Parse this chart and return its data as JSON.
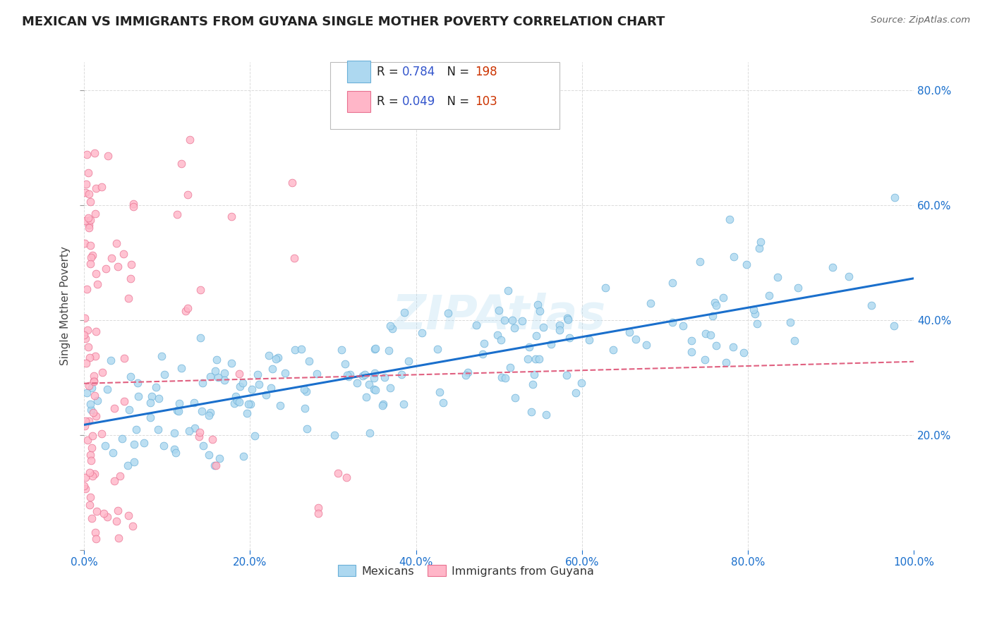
{
  "title": "MEXICAN VS IMMIGRANTS FROM GUYANA SINGLE MOTHER POVERTY CORRELATION CHART",
  "source": "Source: ZipAtlas.com",
  "ylabel": "Single Mother Poverty",
  "blue_R": "0.784",
  "blue_N": "198",
  "pink_R": "0.049",
  "pink_N": "103",
  "blue_color": "#add8f0",
  "pink_color": "#ffb6c8",
  "blue_edge_color": "#6ab0d8",
  "pink_edge_color": "#e87090",
  "blue_line_color": "#1a6fcc",
  "pink_line_color": "#e06080",
  "R_color": "#3355cc",
  "N_color": "#3355cc",
  "N_val_color": "#cc3300",
  "legend_label_blue": "Mexicans",
  "legend_label_pink": "Immigrants from Guyana",
  "watermark": "ZIPAtlas",
  "xlim": [
    0.0,
    1.0
  ],
  "ylim": [
    0.0,
    0.85
  ],
  "xticks": [
    0.0,
    0.2,
    0.4,
    0.6,
    0.8,
    1.0
  ],
  "yticks": [
    0.0,
    0.2,
    0.4,
    0.6,
    0.8
  ],
  "xticklabels": [
    "0.0%",
    "20.0%",
    "40.0%",
    "60.0%",
    "80.0%",
    "100.0%"
  ],
  "yticklabels": [
    "",
    "20.0%",
    "40.0%",
    "60.0%",
    "80.0%"
  ],
  "background_color": "#ffffff",
  "grid_color": "#cccccc",
  "blue_line_intercept": 0.22,
  "blue_line_slope": 0.255,
  "pink_line_intercept": 0.285,
  "pink_line_slope": 0.04
}
